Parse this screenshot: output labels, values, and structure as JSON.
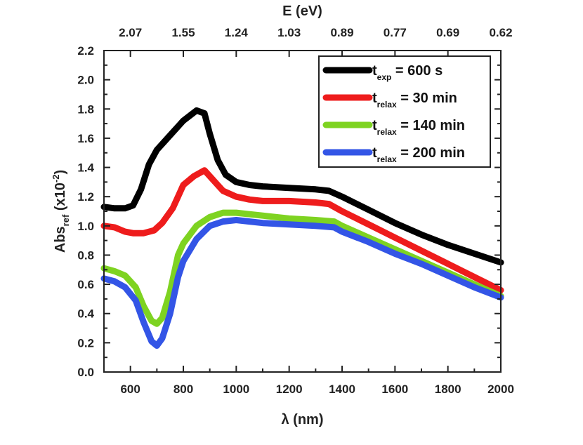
{
  "chart_data": {
    "type": "line",
    "xlabel": "λ (nm)",
    "ylabel": {
      "main": "Abs",
      "sub": "ref",
      "unit_prefix": " (x10",
      "unit_exp": "-2",
      "unit_suffix": ")"
    },
    "top_xlabel": "E (eV)",
    "xlim": [
      500,
      2000
    ],
    "ylim": [
      0.0,
      2.2
    ],
    "x_ticks": [
      600,
      800,
      1000,
      1200,
      1400,
      1600,
      1800,
      2000
    ],
    "y_ticks": [
      "0.0",
      "0.2",
      "0.4",
      "0.6",
      "0.8",
      "1.0",
      "1.2",
      "1.4",
      "1.6",
      "1.8",
      "2.0",
      "2.2"
    ],
    "top_ticks": [
      {
        "label": "2.07",
        "lambda": 600
      },
      {
        "label": "1.55",
        "lambda": 800
      },
      {
        "label": "1.24",
        "lambda": 1000
      },
      {
        "label": "1.03",
        "lambda": 1200
      },
      {
        "label": "0.89",
        "lambda": 1400
      },
      {
        "label": "0.77",
        "lambda": 1600
      },
      {
        "label": "0.69",
        "lambda": 1800
      },
      {
        "label": "0.62",
        "lambda": 2000
      }
    ],
    "legend_position": "top-right",
    "series": [
      {
        "name": "t_exp = 600 s",
        "label_main": "t",
        "label_sub": "exp",
        "label_rest": " = 600 s",
        "color": "#000000",
        "x": [
          500,
          540,
          580,
          610,
          640,
          670,
          700,
          750,
          800,
          850,
          880,
          900,
          930,
          960,
          1000,
          1050,
          1100,
          1200,
          1300,
          1350,
          1400,
          1500,
          1600,
          1700,
          1800,
          1900,
          2000
        ],
        "y": [
          1.13,
          1.12,
          1.12,
          1.14,
          1.25,
          1.42,
          1.52,
          1.62,
          1.72,
          1.79,
          1.77,
          1.63,
          1.45,
          1.35,
          1.3,
          1.28,
          1.27,
          1.26,
          1.25,
          1.24,
          1.2,
          1.11,
          1.02,
          0.94,
          0.87,
          0.81,
          0.75
        ]
      },
      {
        "name": "t_relax = 30 min",
        "label_main": "t",
        "label_sub": "relax",
        "label_rest": " = 30 min",
        "color": "#ee1c1c",
        "x": [
          500,
          540,
          580,
          610,
          650,
          690,
          720,
          760,
          800,
          840,
          880,
          910,
          950,
          1000,
          1050,
          1100,
          1200,
          1300,
          1350,
          1400,
          1500,
          1600,
          1700,
          1800,
          1900,
          2000
        ],
        "y": [
          1.0,
          0.99,
          0.96,
          0.95,
          0.95,
          0.97,
          1.02,
          1.12,
          1.28,
          1.34,
          1.38,
          1.32,
          1.24,
          1.2,
          1.18,
          1.17,
          1.17,
          1.16,
          1.15,
          1.1,
          1.01,
          0.92,
          0.83,
          0.74,
          0.65,
          0.56
        ]
      },
      {
        "name": "t_relax = 140 min",
        "label_main": "t",
        "label_sub": "relax",
        "label_rest": " = 140 min",
        "color": "#7ed321",
        "x": [
          500,
          540,
          580,
          620,
          650,
          680,
          700,
          720,
          750,
          780,
          800,
          850,
          900,
          950,
          1000,
          1050,
          1100,
          1200,
          1300,
          1370,
          1400,
          1500,
          1600,
          1700,
          1800,
          1900,
          2000
        ],
        "y": [
          0.71,
          0.69,
          0.66,
          0.58,
          0.45,
          0.35,
          0.33,
          0.37,
          0.55,
          0.8,
          0.88,
          1.0,
          1.06,
          1.09,
          1.09,
          1.08,
          1.07,
          1.05,
          1.04,
          1.03,
          1.0,
          0.92,
          0.84,
          0.76,
          0.68,
          0.6,
          0.52
        ]
      },
      {
        "name": "t_relax = 200 min",
        "label_main": "t",
        "label_sub": "relax",
        "label_rest": " = 200 min",
        "color": "#3355e6",
        "x": [
          500,
          540,
          580,
          620,
          650,
          680,
          700,
          720,
          750,
          780,
          800,
          850,
          900,
          950,
          1000,
          1050,
          1100,
          1200,
          1300,
          1370,
          1400,
          1500,
          1600,
          1700,
          1800,
          1900,
          2000
        ],
        "y": [
          0.64,
          0.62,
          0.58,
          0.49,
          0.34,
          0.21,
          0.18,
          0.23,
          0.4,
          0.65,
          0.76,
          0.91,
          1.0,
          1.03,
          1.04,
          1.03,
          1.02,
          1.01,
          1.0,
          0.99,
          0.96,
          0.89,
          0.81,
          0.74,
          0.66,
          0.58,
          0.51
        ]
      }
    ]
  }
}
